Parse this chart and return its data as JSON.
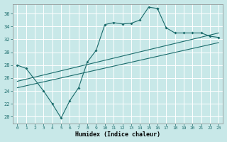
{
  "xlabel": "Humidex (Indice chaleur)",
  "bg_color": "#c8e8e8",
  "line_color": "#1a6b6b",
  "grid_color": "#ffffff",
  "xlim": [
    -0.5,
    23.5
  ],
  "ylim": [
    19.0,
    37.5
  ],
  "yticks": [
    20,
    22,
    24,
    26,
    28,
    30,
    32,
    34,
    36
  ],
  "xticks": [
    0,
    1,
    2,
    3,
    4,
    5,
    6,
    7,
    8,
    9,
    10,
    11,
    12,
    13,
    14,
    15,
    16,
    17,
    18,
    19,
    20,
    21,
    22,
    23
  ],
  "s1x": [
    0,
    1,
    3,
    4,
    5,
    6,
    7,
    8,
    9,
    10,
    11,
    12,
    13,
    14,
    15,
    16
  ],
  "s1y": [
    28,
    27.5,
    24,
    22,
    19.8,
    22.5,
    24.5,
    28.5,
    30.3,
    34.3,
    34.6,
    34.4,
    34.5,
    35.0,
    37.0,
    36.8
  ],
  "s2x": [
    16,
    17,
    18,
    19,
    20,
    21,
    22,
    23
  ],
  "s2y": [
    36.8,
    33.8,
    33.0,
    33.0,
    33.0,
    33.0,
    32.5,
    32.3
  ],
  "diag1x": [
    0,
    23
  ],
  "diag1y": [
    25.5,
    33.0
  ],
  "diag2x": [
    0,
    23
  ],
  "diag2y": [
    24.5,
    31.5
  ]
}
